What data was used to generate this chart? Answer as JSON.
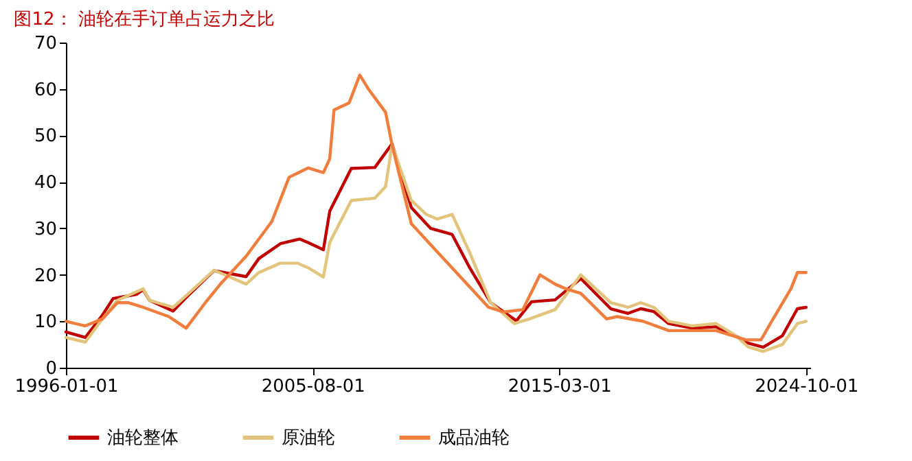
{
  "chart_data": {
    "type": "line",
    "title": "图12：  油轮在手订单占运力之比",
    "xlim": [
      "1996-01-01",
      "2024-12-01"
    ],
    "xticks": [
      "1996-01-01",
      "2005-08-01",
      "2015-03-01",
      "2024-10-01"
    ],
    "ylim": [
      0,
      70
    ],
    "yticks": [
      0,
      10,
      20,
      30,
      40,
      50,
      60,
      70
    ],
    "grid": false,
    "legend": "bottom",
    "series": [
      {
        "name": "油轮整体",
        "color": "#c00000",
        "x": [
          "1996-01",
          "1996-10",
          "1997-06",
          "1997-11",
          "1998-10",
          "1999-01",
          "1999-04",
          "2000-03",
          "2000-09",
          "2001-10",
          "2003-01",
          "2003-07",
          "2004-05",
          "2005-02",
          "2005-06",
          "2006-01",
          "2006-04",
          "2007-02",
          "2008-01",
          "2008-09",
          "2009-06",
          "2010-03",
          "2011-01",
          "2011-09",
          "2012-07",
          "2013-03",
          "2013-07",
          "2014-02",
          "2015-01",
          "2016-01",
          "2017-03",
          "2017-11",
          "2018-05",
          "2018-11",
          "2019-06",
          "2020-05",
          "2021-04",
          "2022-01",
          "2022-07",
          "2023-02",
          "2023-11",
          "2024-06",
          "2024-10"
        ],
        "values": [
          7.7,
          6.5,
          11.3,
          14.9,
          15.8,
          16.8,
          14.5,
          12.2,
          15.1,
          20.9,
          19.6,
          23.5,
          26.7,
          27.7,
          26.9,
          25.4,
          33.7,
          42.9,
          43.1,
          48.2,
          34.5,
          30,
          28.7,
          21.7,
          14,
          11.4,
          10.1,
          14.2,
          14.6,
          19.2,
          12.7,
          11.7,
          12.7,
          12.1,
          9.5,
          8.5,
          8.8,
          6.9,
          5.3,
          4.4,
          6.9,
          12.7,
          13
        ]
      },
      {
        "name": "原油轮",
        "color": "#e2c47c",
        "x": [
          "1996-01",
          "1996-10",
          "1997-06",
          "1998-01",
          "1999-01",
          "1999-04",
          "2000-03",
          "2000-09",
          "2001-10",
          "2003-01",
          "2003-07",
          "2004-05",
          "2005-01",
          "2005-06",
          "2006-01",
          "2006-04",
          "2007-02",
          "2008-01",
          "2008-06",
          "2008-09",
          "2009-06",
          "2010-01",
          "2010-06",
          "2011-01",
          "2011-09",
          "2012-07",
          "2013-06",
          "2014-01",
          "2015-01",
          "2016-01",
          "2017-03",
          "2017-11",
          "2018-05",
          "2018-11",
          "2019-06",
          "2020-05",
          "2021-04",
          "2022-01",
          "2022-07",
          "2023-02",
          "2023-11",
          "2024-06",
          "2024-10"
        ],
        "values": [
          6.5,
          5.5,
          10.5,
          14.5,
          17,
          14.5,
          13,
          15.5,
          21,
          18,
          20.5,
          22.5,
          22.5,
          21.5,
          19.5,
          27,
          36,
          36.5,
          39,
          48,
          36,
          33,
          32,
          33,
          25,
          14,
          9.5,
          10.5,
          12.5,
          20,
          14,
          13,
          14,
          13,
          10,
          9,
          9.5,
          7,
          4.5,
          3.5,
          5,
          9.5,
          10
        ]
      },
      {
        "name": "成品油轮",
        "color": "#f07d3c",
        "x": [
          "1996-01",
          "1996-10",
          "1997-06",
          "1998-01",
          "1998-06",
          "1999-01",
          "2000-01",
          "2000-09",
          "2001-06",
          "2002-01",
          "2003-01",
          "2004-01",
          "2004-09",
          "2005-06",
          "2006-01",
          "2006-04",
          "2006-06",
          "2007-01",
          "2007-06",
          "2007-10",
          "2008-06",
          "2008-09",
          "2009-06",
          "2010-06",
          "2011-06",
          "2012-06",
          "2013-01",
          "2013-10",
          "2014-06",
          "2015-01",
          "2015-06",
          "2016-01",
          "2017-01",
          "2017-06",
          "2018-06",
          "2019-06",
          "2020-05",
          "2021-04",
          "2022-06",
          "2023-01",
          "2023-06",
          "2024-03",
          "2024-06",
          "2024-10"
        ],
        "values": [
          10,
          9,
          10.5,
          14,
          14,
          13,
          11,
          8.5,
          14,
          18,
          24,
          31.5,
          41,
          43,
          42,
          45,
          55.5,
          57,
          63,
          60,
          55,
          48,
          31,
          25,
          19,
          13,
          12,
          12.5,
          20,
          18,
          17,
          16,
          10.5,
          11,
          10,
          8,
          8,
          8,
          6,
          6,
          10,
          17,
          20.5,
          20.5
        ]
      }
    ]
  }
}
